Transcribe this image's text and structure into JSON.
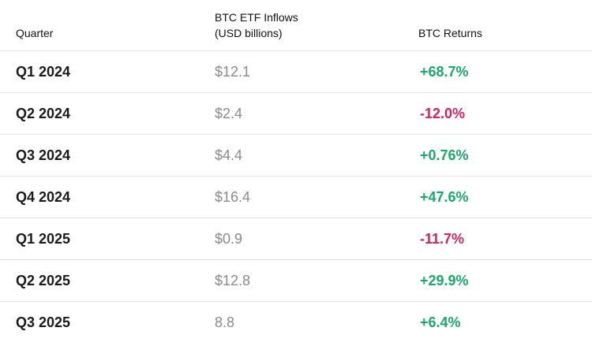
{
  "table": {
    "header": [
      "Quarter",
      "BTC ETF Inflows (USD billions)",
      "BTC Returns"
    ],
    "rows": [
      {
        "quarter": "Q1 2024",
        "inflows": "$12.1",
        "returns": "+68.7%",
        "returns_color": "#1aa96b"
      },
      {
        "quarter": "Q2 2024",
        "inflows": "$2.4",
        "returns": "-12.0%",
        "returns_color": "#d0245a"
      },
      {
        "quarter": "Q3 2024",
        "inflows": "$4.4",
        "returns": "+0.76%",
        "returns_color": "#1aa96b"
      },
      {
        "quarter": "Q4 2024",
        "inflows": "$16.4",
        "returns": "+47.6%",
        "returns_color": "#1aa96b"
      },
      {
        "quarter": "Q1 2025",
        "inflows": "$0.9",
        "returns": "-11.7%",
        "returns_color": "#d0245a"
      },
      {
        "quarter": "Q2 2025",
        "inflows": "$12.8",
        "returns": "+29.9%",
        "returns_color": "#1aa96b"
      },
      {
        "quarter": "Q3 2025",
        "inflows": "8.8",
        "returns": "+6.4%",
        "returns_color": "#1aa96b"
      }
    ]
  }
}
